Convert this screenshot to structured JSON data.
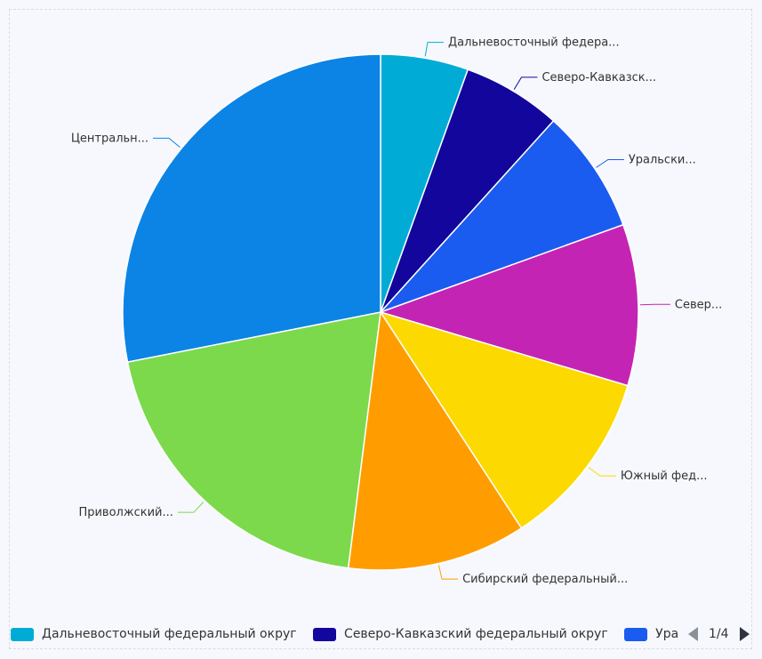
{
  "chart_data": {
    "type": "pie",
    "start_angle": "top, clockwise",
    "slices": [
      {
        "label": "Дальневосточный федера...",
        "full_name": "Дальневосточный федеральный округ",
        "value": 5.5,
        "color": "#00acd5"
      },
      {
        "label": "Северо-Кавказск...",
        "full_name": "Северо-Кавказский федеральный округ",
        "value": 6.2,
        "color": "#12069c"
      },
      {
        "label": "Уральски...",
        "value": 7.8,
        "color": "#1b5cf0"
      },
      {
        "label": "Север...",
        "value": 10.1,
        "color": "#c424b4"
      },
      {
        "label": "Южный фед...",
        "value": 11.2,
        "color": "#fcd900"
      },
      {
        "label": "Сибирский федеральный...",
        "value": 11.2,
        "color": "#ff9d00"
      },
      {
        "label": "Приволжский...",
        "value": 19.9,
        "color": "#7bd94b"
      },
      {
        "label": "Центральн...",
        "value": 28.1,
        "color": "#0b84e6"
      }
    ],
    "legend": {
      "placement": "bottom",
      "items": [
        "Дальневосточный федеральный округ",
        "Северо-Кавказский федеральный округ",
        "Ура"
      ],
      "page": "1/4"
    }
  }
}
